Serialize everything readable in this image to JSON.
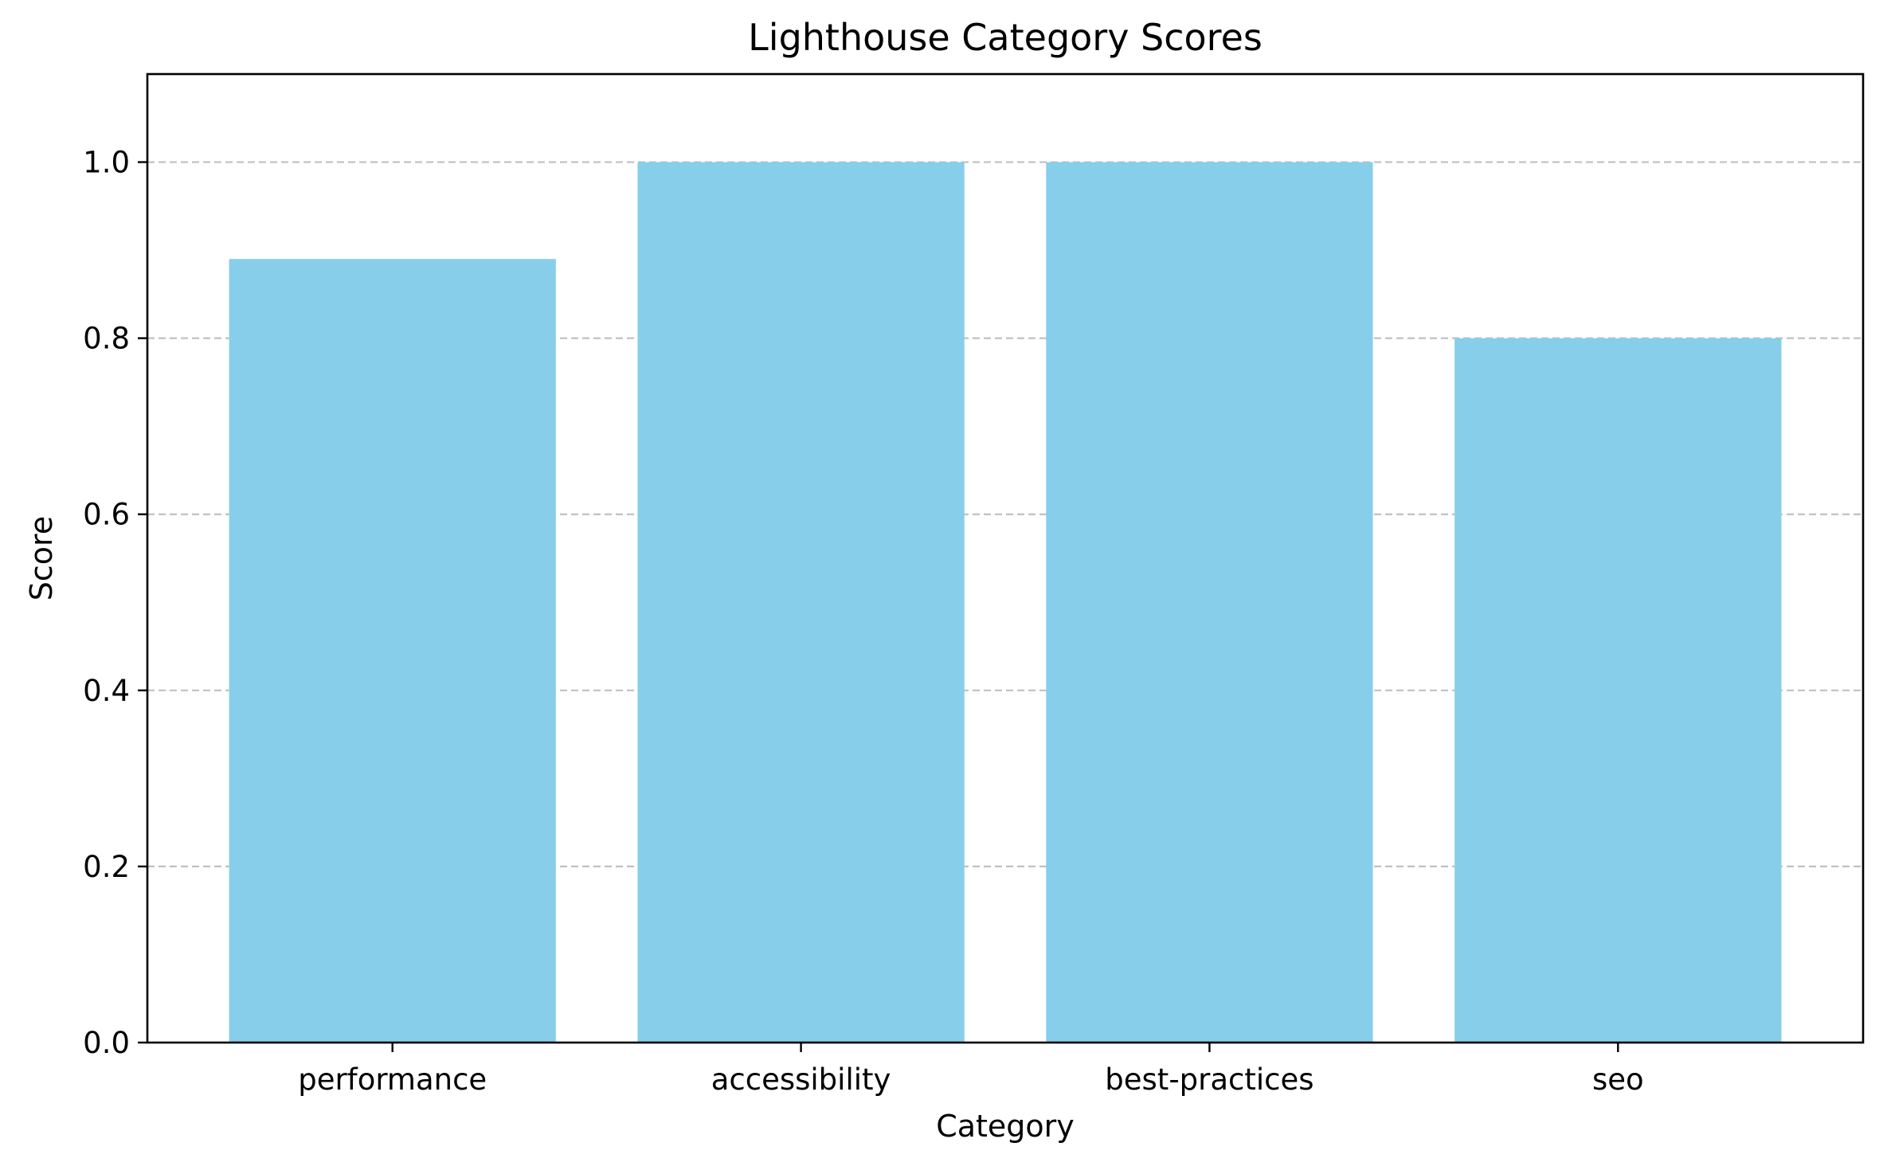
{
  "chart_data": {
    "type": "bar",
    "title": "Lighthouse Category Scores",
    "xlabel": "Category",
    "ylabel": "Score",
    "categories": [
      "performance",
      "accessibility",
      "best-practices",
      "seo"
    ],
    "values": [
      0.89,
      1.0,
      1.0,
      0.8
    ],
    "ylim": [
      0,
      1.1
    ],
    "yticks": [
      0.0,
      0.2,
      0.4,
      0.6,
      0.8,
      1.0
    ],
    "ytick_labels": [
      "0.0",
      "0.2",
      "0.4",
      "0.6",
      "0.8",
      "1.0"
    ],
    "grid": {
      "axis": "y",
      "style": "dashed"
    },
    "colors": {
      "bar": "#87CEEB",
      "grid": "#c0c0c0",
      "axis": "#000000"
    }
  }
}
